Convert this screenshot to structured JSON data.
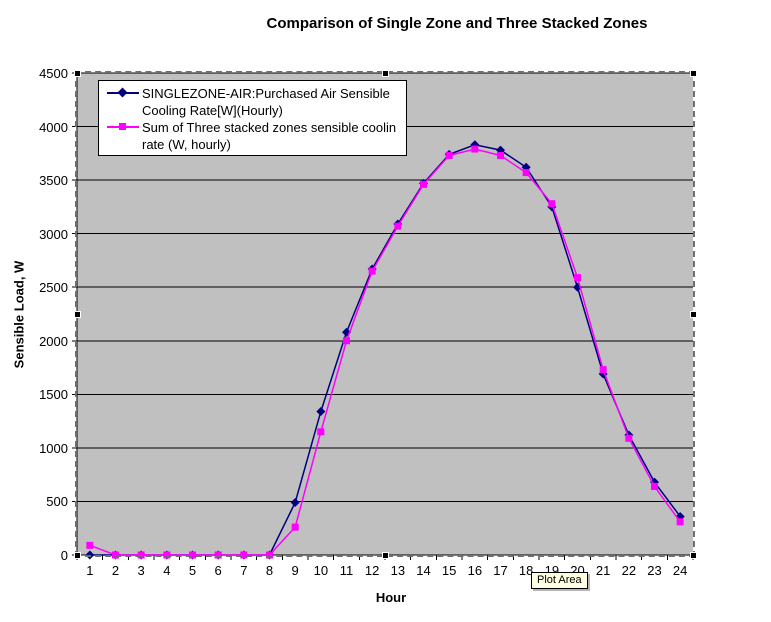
{
  "chart": {
    "title": "Comparison of Single Zone and Three Stacked Zones",
    "x_axis_title": "Hour",
    "y_axis_title": "Sensible Load, W",
    "tooltip": "Plot Area"
  },
  "legend": {
    "entries": [
      {
        "marker": "diamond",
        "color": "#000080",
        "lines": [
          "SINGLEZONE-AIR:Purchased Air Sensible",
          "Cooling Rate[W](Hourly)"
        ]
      },
      {
        "marker": "square",
        "color": "#FF00FF",
        "lines": [
          "Sum of Three stacked zones sensible coolin",
          "rate (W, hourly)"
        ]
      }
    ]
  },
  "colors": {
    "plot_background": "#C0C0C0",
    "gridline": "#000000",
    "axis": "#000000",
    "series1": "#000080",
    "series2": "#FF00FF",
    "tooltip_background": "#FFFFE1"
  },
  "chart_data": {
    "type": "line",
    "title": "Comparison of Single Zone and Three Stacked Zones",
    "xlabel": "Hour",
    "ylabel": "Sensible Load, W",
    "x": [
      1,
      2,
      3,
      4,
      5,
      6,
      7,
      8,
      9,
      10,
      11,
      12,
      13,
      14,
      15,
      16,
      17,
      18,
      19,
      20,
      21,
      22,
      23,
      24
    ],
    "x_tick_labels": [
      "1",
      "2",
      "3",
      "4",
      "5",
      "6",
      "7",
      "8",
      "9",
      "10",
      "11",
      "12",
      "13",
      "14",
      "15",
      "16",
      "17",
      "18",
      "19",
      "20",
      "21",
      "22",
      "23",
      "24"
    ],
    "ylim": [
      0,
      4500
    ],
    "y_tick_step": 500,
    "y_tick_labels": [
      "0",
      "500",
      "1000",
      "1500",
      "2000",
      "2500",
      "3000",
      "3500",
      "4000",
      "4500"
    ],
    "grid": "horizontal",
    "legend_position": "top-left-inside",
    "series": [
      {
        "name": "SINGLEZONE-AIR:Purchased Air Sensible Cooling Rate[W](Hourly)",
        "color": "#000080",
        "marker": "diamond",
        "values": [
          0,
          0,
          0,
          0,
          0,
          0,
          0,
          0,
          490,
          1340,
          2080,
          2670,
          3090,
          3470,
          3740,
          3830,
          3780,
          3620,
          3250,
          2500,
          1690,
          1120,
          680,
          360
        ]
      },
      {
        "name": "Sum of Three stacked zones sensible cooling rate (W, hourly)",
        "color": "#FF00FF",
        "marker": "square",
        "values": [
          90,
          0,
          0,
          0,
          0,
          0,
          0,
          0,
          260,
          1150,
          2000,
          2650,
          3070,
          3460,
          3730,
          3790,
          3730,
          3570,
          3280,
          2590,
          1730,
          1090,
          640,
          310
        ]
      }
    ]
  }
}
